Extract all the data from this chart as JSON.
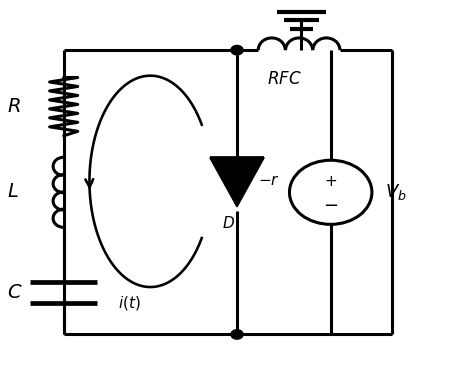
{
  "bg_color": "#ffffff",
  "line_color": "#000000",
  "line_width": 2.2,
  "fig_width": 4.74,
  "fig_height": 3.7
}
